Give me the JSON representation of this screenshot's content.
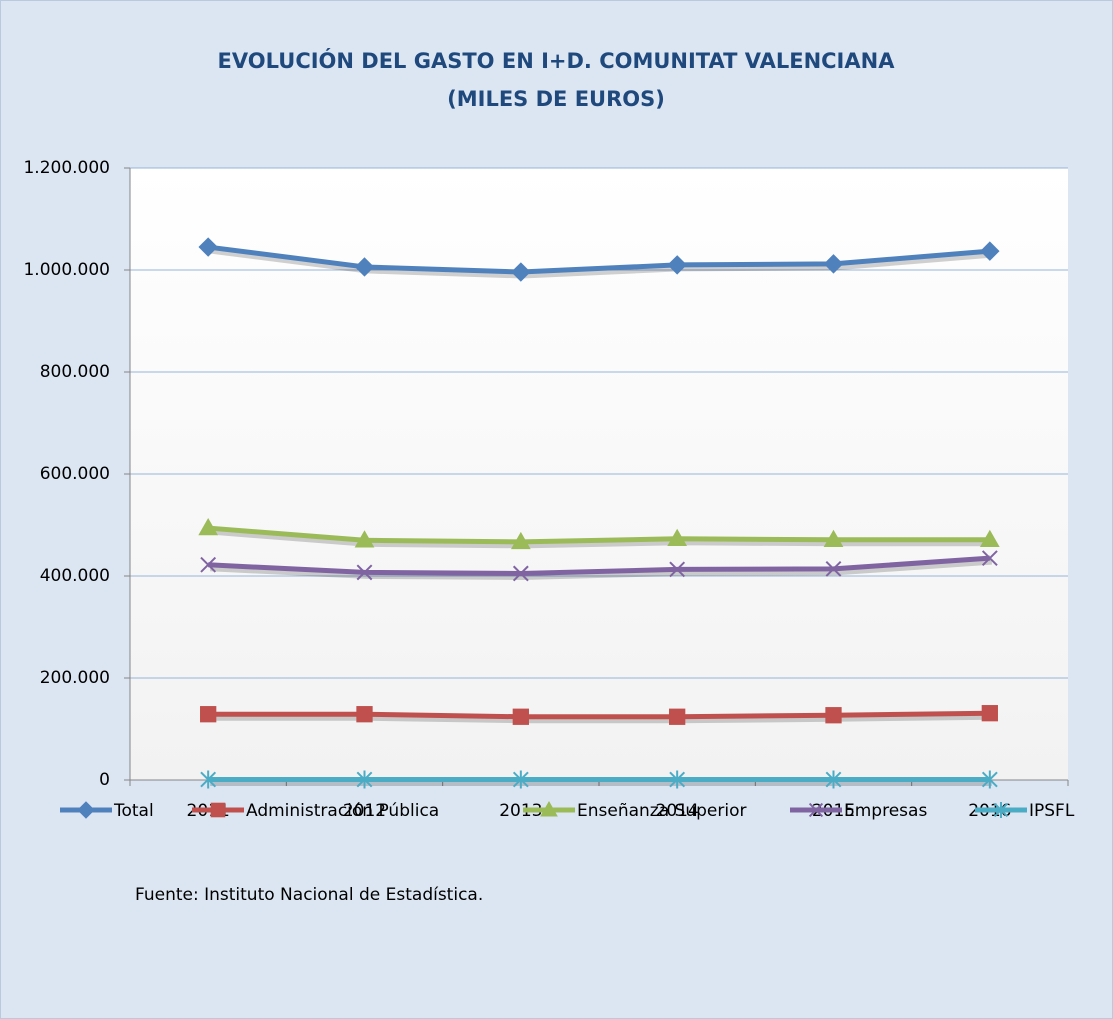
{
  "chart_data": {
    "type": "line",
    "title": "EVOLUCIÓN DEL GASTO EN I+D. COMUNITAT VALENCIANA",
    "subtitle": "(MILES DE EUROS)",
    "categories": [
      "2011",
      "2012",
      "2013",
      "2014",
      "2015",
      "2016"
    ],
    "series": [
      {
        "name": "Total",
        "color": "#4f81bd",
        "marker": "diamond",
        "values": [
          1045000,
          1006000,
          996000,
          1010000,
          1012000,
          1037000
        ]
      },
      {
        "name": "Administración Pública",
        "color": "#c0504d",
        "marker": "square",
        "values": [
          129000,
          129000,
          124000,
          124000,
          127000,
          131000
        ]
      },
      {
        "name": "Enseñanza Superior",
        "color": "#9bbb59",
        "marker": "triangle",
        "values": [
          494000,
          470000,
          467000,
          473000,
          471000,
          471000
        ]
      },
      {
        "name": "Empresas",
        "color": "#8064a2",
        "marker": "x",
        "values": [
          422000,
          407000,
          405000,
          413000,
          414000,
          435000
        ]
      },
      {
        "name": "IPSFL",
        "color": "#4bacc6",
        "marker": "star",
        "values": [
          1000,
          1000,
          1000,
          1000,
          1000,
          1000
        ]
      }
    ],
    "ylim": [
      0,
      1200000
    ],
    "yticks": [
      0,
      {
        "value": 200000,
        "label": "200.000"
      },
      {
        "value": 400000,
        "label": "400.000"
      },
      {
        "value": 600000,
        "label": "600.000"
      },
      {
        "value": 800000,
        "label": "800.000"
      },
      {
        "value": 1000000,
        "label": "1.000.000"
      },
      {
        "value": 1200000,
        "label": "1.200.000"
      }
    ],
    "grid": true,
    "legend": "bottom",
    "source": "Fuente: Instituto Nacional de Estadística."
  }
}
